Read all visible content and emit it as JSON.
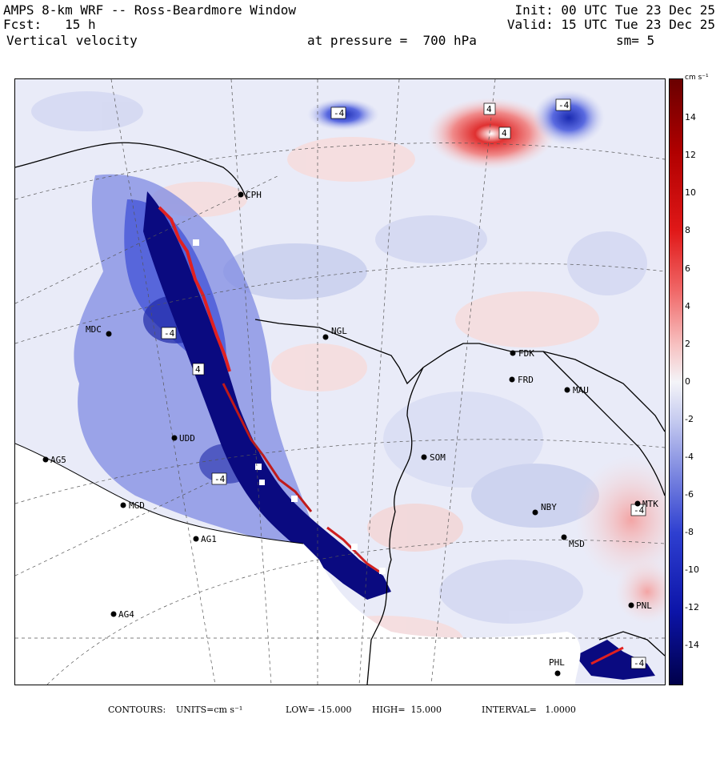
{
  "header": {
    "line1_left": "AMPS 8-km WRF -- Ross-Beardmore Window",
    "line2_left": "Fcst:   15 h",
    "line3_left": "Vertical velocity",
    "line1_right": "Init: 00 UTC Tue 23 Dec 25",
    "line2_right": "Valid: 15 UTC Tue 23 Dec 25",
    "pressure": "at pressure =  700 hPa",
    "smoothing": "sm= 5"
  },
  "colorbar": {
    "unit": "cm s⁻¹",
    "ticks": [
      "14",
      "12",
      "10",
      "8",
      "6",
      "4",
      "2",
      "0",
      "-2",
      "-4",
      "-6",
      "-8",
      "-10",
      "-12",
      "-14"
    ],
    "colors": {
      "high": "#7a0000",
      "mid_high": "#e63030",
      "low_pos": "#f6c8c8",
      "zero": "#f4f4f8",
      "low_neg": "#c8cdf0",
      "mid_neg": "#3b4bd6",
      "low": "#00004a"
    }
  },
  "stations": [
    {
      "id": "CPH"
    },
    {
      "id": "NGL"
    },
    {
      "id": "MDC"
    },
    {
      "id": "FDK"
    },
    {
      "id": "FRD"
    },
    {
      "id": "MAU"
    },
    {
      "id": "AG5"
    },
    {
      "id": "UDD"
    },
    {
      "id": "SOM"
    },
    {
      "id": "MGD"
    },
    {
      "id": "NBY"
    },
    {
      "id": "MTK"
    },
    {
      "id": "AG1"
    },
    {
      "id": "MSD"
    },
    {
      "id": "AG4"
    },
    {
      "id": "PNL"
    },
    {
      "id": "PHL"
    }
  ],
  "contour_labels": [
    "-4",
    "4",
    "-4",
    "4",
    "-4",
    "-4",
    "4",
    "-4",
    "-4"
  ],
  "footer": {
    "contours_label": "CONTOURS:",
    "units": "UNITS=cm s⁻¹",
    "low": "LOW= -15.000",
    "high": "HIGH=  15.000",
    "interval": "INTERVAL=   1.0000"
  }
}
